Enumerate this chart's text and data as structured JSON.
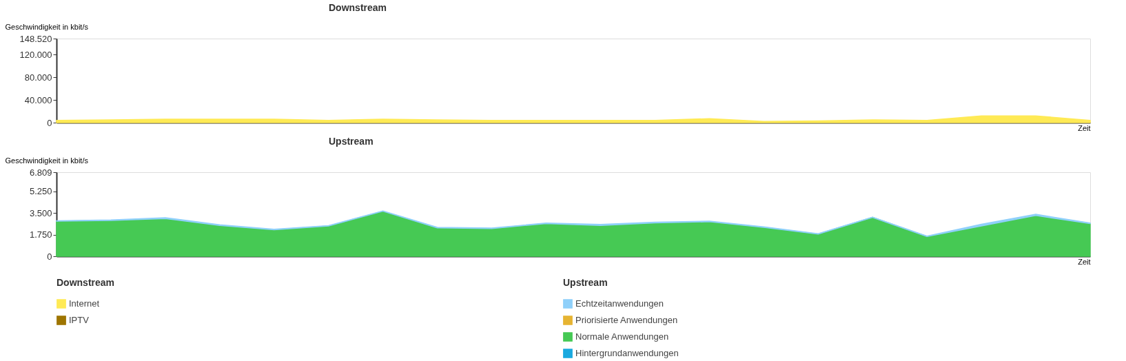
{
  "chart_data": [
    {
      "type": "area",
      "title": "Downstream",
      "ylabel": "Geschwindigkeit in kbit/s",
      "xlabel": "Zeit",
      "stacked": true,
      "grid": false,
      "legend": "bottom left",
      "legend_title": "Downstream",
      "tick_labels": "y",
      "categories": [
        null,
        null,
        null,
        null,
        null,
        null,
        null,
        null,
        null,
        null,
        null,
        null,
        null,
        null,
        null,
        null,
        null,
        null,
        null,
        null
      ],
      "ylim": [
        0,
        148520
      ],
      "yticks": [
        0,
        {
          "value": 40000,
          "label": "40.000"
        },
        {
          "value": 80000,
          "label": "80.000"
        },
        {
          "value": 120000,
          "label": "120.000"
        },
        {
          "value": 148520,
          "label": "148.520"
        }
      ],
      "series": [
        {
          "name": "IPTV",
          "color": "#9e7500",
          "values": [
            null,
            null,
            null,
            null,
            null,
            null,
            null,
            null,
            null,
            null,
            null,
            null,
            null,
            null,
            null,
            null,
            null,
            null,
            null,
            null
          ]
        },
        {
          "name": "Internet",
          "color": "#ffea55",
          "values": [
            4000,
            5000,
            6000,
            6000,
            6000,
            4000,
            6000,
            5000,
            4000,
            4000,
            4000,
            4000,
            7000,
            2000,
            3000,
            5000,
            4000,
            12000,
            12000,
            4000
          ]
        }
      ]
    },
    {
      "type": "area",
      "title": "Upstream",
      "ylabel": "Geschwindigkeit in kbit/s",
      "xlabel": "Zeit",
      "stacked": true,
      "grid": false,
      "legend": "bottom",
      "legend_title": "Upstream",
      "tick_labels": "y",
      "categories": [
        null,
        null,
        null,
        null,
        null,
        null,
        null,
        null,
        null,
        null,
        null,
        null,
        null,
        null,
        null,
        null,
        null,
        null,
        null,
        null
      ],
      "ylim": [
        0,
        6809
      ],
      "yticks": [
        0,
        {
          "value": 1750,
          "label": "1.750"
        },
        {
          "value": 3500,
          "label": "3.500"
        },
        {
          "value": 5250,
          "label": "5.250"
        },
        {
          "value": 6809,
          "label": "6.809"
        }
      ],
      "series": [
        {
          "name": "Hintergrundanwendungen",
          "color": "#1aa9df",
          "values": [
            null,
            null,
            null,
            null,
            null,
            null,
            null,
            null,
            null,
            null,
            null,
            null,
            null,
            null,
            null,
            null,
            null,
            null,
            null,
            null
          ]
        },
        {
          "name": "Normale Anwendungen",
          "color": "#46c954",
          "values": [
            2850,
            2900,
            3050,
            2500,
            2150,
            2450,
            3650,
            2300,
            2250,
            2650,
            2500,
            2700,
            2800,
            2350,
            1800,
            3150,
            1600,
            2450,
            3300,
            2650
          ]
        },
        {
          "name": "Priorisierte Anwendungen",
          "color": "#e6b432",
          "values": [
            null,
            null,
            null,
            null,
            null,
            null,
            null,
            null,
            null,
            null,
            null,
            null,
            null,
            null,
            null,
            null,
            null,
            null,
            null,
            null
          ]
        },
        {
          "name": "Echtzeitanwendungen",
          "color": "#8fd0fa",
          "values": [
            30,
            40,
            80,
            50,
            40,
            40,
            20,
            50,
            40,
            40,
            80,
            60,
            40,
            30,
            30,
            20,
            30,
            150,
            100,
            50
          ]
        }
      ]
    }
  ]
}
